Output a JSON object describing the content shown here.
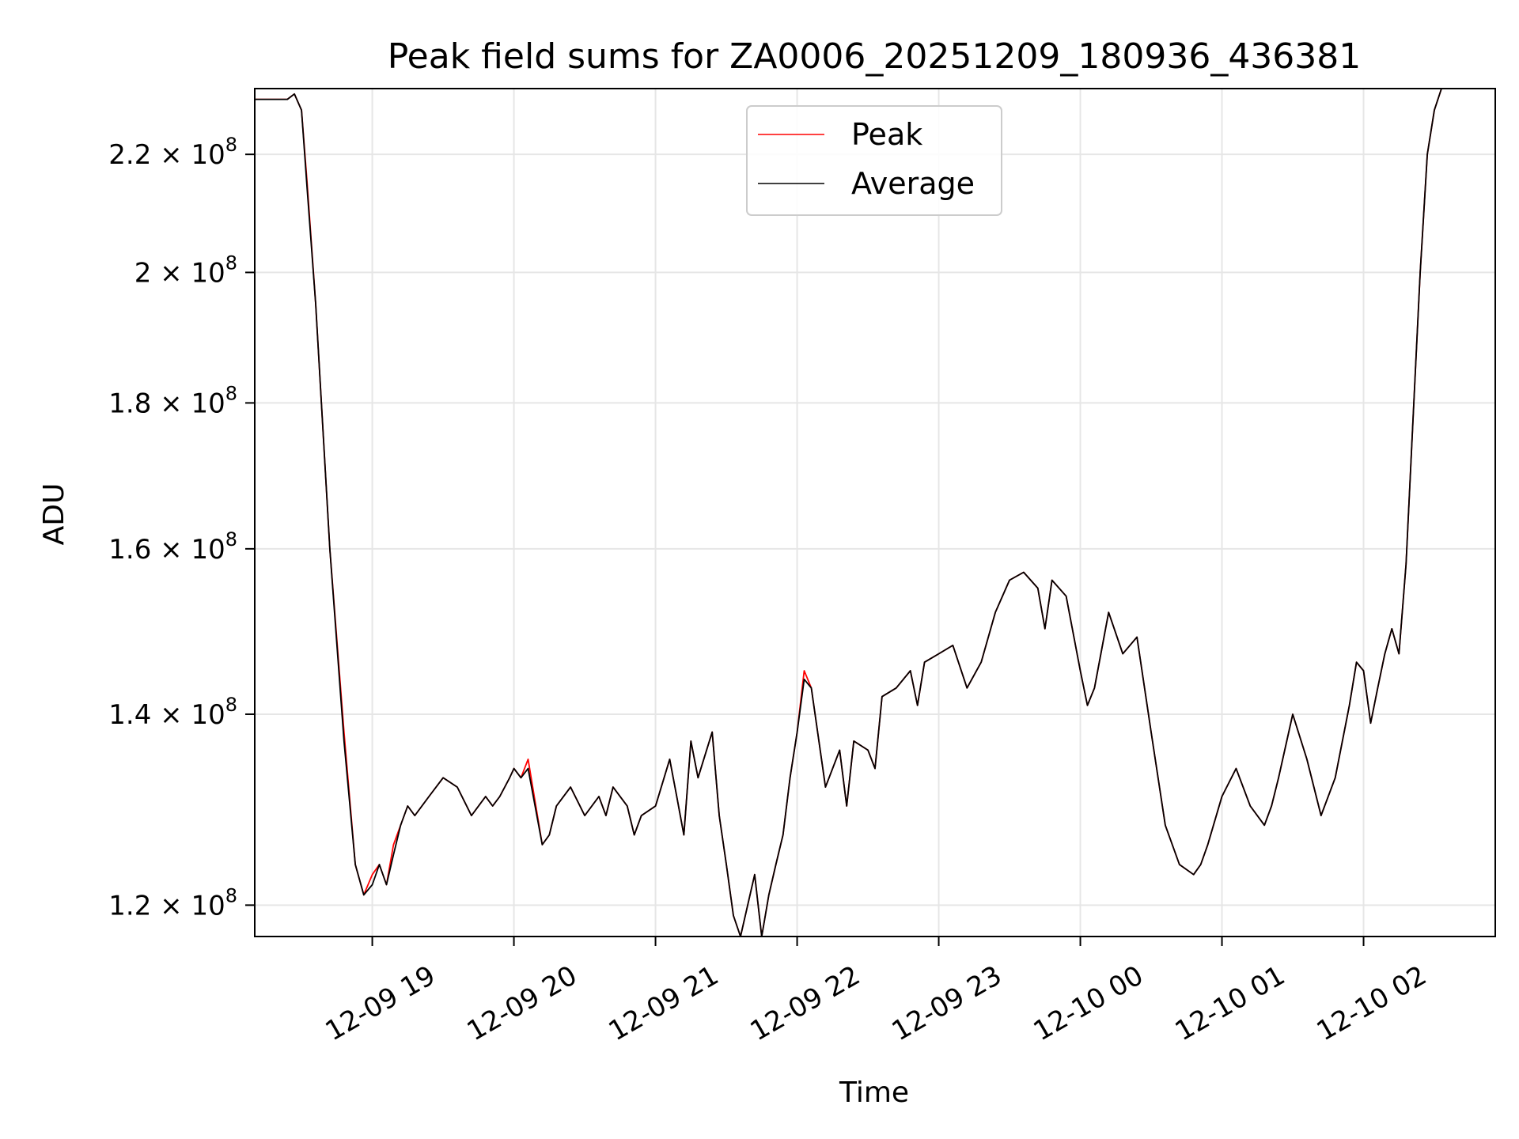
{
  "chart_data": {
    "type": "line",
    "title": "Peak field sums for ZA0006_20251209_180936_436381",
    "xlabel": "Time",
    "ylabel": "ADU",
    "yscale": "log",
    "grid": true,
    "legend_position": "top-center",
    "x_ticks": [
      "12-09 19",
      "12-09 20",
      "12-09 21",
      "12-09 22",
      "12-09 23",
      "12-10 00",
      "12-10 01",
      "12-10 02"
    ],
    "y_ticks": [
      {
        "mantissa": "2.2",
        "exponent": "8",
        "value": 220000000
      },
      {
        "mantissa": "2",
        "exponent": "8",
        "value": 200000000
      },
      {
        "mantissa": "1.8",
        "exponent": "8",
        "value": 180000000
      },
      {
        "mantissa": "1.6",
        "exponent": "8",
        "value": 160000000
      },
      {
        "mantissa": "1.4",
        "exponent": "8",
        "value": 140000000
      },
      {
        "mantissa": "1.2",
        "exponent": "8",
        "value": 120000000
      }
    ],
    "xlim_hours": [
      -0.83,
      7.93
    ],
    "ylim": [
      117000000,
      232000000
    ],
    "x_hours": [
      -0.83,
      -0.6,
      -0.55,
      -0.5,
      -0.46,
      -0.4,
      -0.3,
      -0.2,
      -0.12,
      -0.06,
      0.0,
      0.05,
      0.1,
      0.15,
      0.2,
      0.25,
      0.3,
      0.4,
      0.5,
      0.6,
      0.7,
      0.8,
      0.85,
      0.9,
      0.97,
      1.0,
      1.05,
      1.1,
      1.2,
      1.25,
      1.3,
      1.4,
      1.5,
      1.6,
      1.65,
      1.7,
      1.8,
      1.85,
      1.9,
      2.0,
      2.1,
      2.15,
      2.2,
      2.25,
      2.3,
      2.4,
      2.45,
      2.5,
      2.55,
      2.6,
      2.7,
      2.75,
      2.8,
      2.85,
      2.9,
      2.95,
      3.0,
      3.05,
      3.1,
      3.2,
      3.3,
      3.35,
      3.4,
      3.5,
      3.55,
      3.6,
      3.7,
      3.8,
      3.85,
      3.9,
      4.0,
      4.1,
      4.2,
      4.3,
      4.4,
      4.5,
      4.6,
      4.7,
      4.75,
      4.8,
      4.9,
      5.0,
      5.05,
      5.1,
      5.2,
      5.3,
      5.4,
      5.5,
      5.6,
      5.7,
      5.8,
      5.85,
      5.9,
      6.0,
      6.1,
      6.2,
      6.3,
      6.35,
      6.4,
      6.5,
      6.6,
      6.7,
      6.8,
      6.9,
      6.95,
      7.0,
      7.05,
      7.1,
      7.15,
      7.2,
      7.25,
      7.3,
      7.35,
      7.4,
      7.45,
      7.5,
      7.55,
      7.6,
      7.65,
      7.75,
      7.93
    ],
    "series": [
      {
        "name": "Peak",
        "color": "#ff0000",
        "values": [
          230.0,
          230.0,
          231.0,
          228.0,
          215.0,
          195.0,
          160.0,
          138.0,
          124.0,
          121.0,
          123.0,
          124.0,
          122.0,
          126.0,
          128.0,
          130.0,
          129.0,
          131.0,
          133.0,
          132.0,
          129.0,
          131.0,
          130.0,
          131.0,
          133.0,
          134.0,
          133.0,
          135.0,
          126.0,
          127.0,
          130.0,
          132.0,
          129.0,
          131.0,
          129.0,
          132.0,
          130.0,
          127.0,
          129.0,
          130.0,
          135.0,
          131.0,
          127.0,
          137.0,
          133.0,
          138.0,
          129.0,
          124.0,
          119.0,
          117.0,
          123.0,
          117.0,
          121.0,
          124.0,
          127.0,
          133.0,
          138.0,
          145.0,
          143.0,
          132.0,
          136.0,
          130.0,
          137.0,
          136.0,
          134.0,
          142.0,
          143.0,
          145.0,
          141.0,
          146.0,
          147.0,
          148.0,
          143.0,
          146.0,
          152.0,
          156.0,
          157.0,
          155.0,
          150.0,
          156.0,
          154.0,
          145.0,
          141.0,
          143.0,
          152.0,
          147.0,
          149.0,
          138.0,
          128.0,
          124.0,
          123.0,
          124.0,
          126.0,
          131.0,
          134.0,
          130.0,
          128.0,
          130.0,
          133.0,
          140.0,
          135.0,
          129.0,
          133.0,
          141.0,
          146.0,
          145.0,
          139.0,
          143.0,
          147.0,
          150.0,
          147.0,
          158.0,
          178.0,
          200.0,
          220.0,
          228.0,
          232.0,
          232.0,
          232.0,
          232.0,
          232.0
        ]
      },
      {
        "name": "Average",
        "color": "#000000",
        "values": [
          230.0,
          230.0,
          231.0,
          228.0,
          214.0,
          195.0,
          160.0,
          137.0,
          124.0,
          121.0,
          122.0,
          124.0,
          122.0,
          125.0,
          128.0,
          130.0,
          129.0,
          131.0,
          133.0,
          132.0,
          129.0,
          131.0,
          130.0,
          131.0,
          133.0,
          134.0,
          133.0,
          134.0,
          126.0,
          127.0,
          130.0,
          132.0,
          129.0,
          131.0,
          129.0,
          132.0,
          130.0,
          127.0,
          129.0,
          130.0,
          135.0,
          131.0,
          127.0,
          137.0,
          133.0,
          138.0,
          129.0,
          124.0,
          119.0,
          117.0,
          123.0,
          117.0,
          121.0,
          124.0,
          127.0,
          133.0,
          138.0,
          144.0,
          143.0,
          132.0,
          136.0,
          130.0,
          137.0,
          136.0,
          134.0,
          142.0,
          143.0,
          145.0,
          141.0,
          146.0,
          147.0,
          148.0,
          143.0,
          146.0,
          152.0,
          156.0,
          157.0,
          155.0,
          150.0,
          156.0,
          154.0,
          145.0,
          141.0,
          143.0,
          152.0,
          147.0,
          149.0,
          138.0,
          128.0,
          124.0,
          123.0,
          124.0,
          126.0,
          131.0,
          134.0,
          130.0,
          128.0,
          130.0,
          133.0,
          140.0,
          135.0,
          129.0,
          133.0,
          141.0,
          146.0,
          145.0,
          139.0,
          143.0,
          147.0,
          150.0,
          147.0,
          158.0,
          178.0,
          200.0,
          220.0,
          228.0,
          232.0,
          232.0,
          232.0,
          232.0,
          232.0
        ]
      }
    ],
    "value_unit_multiplier": 1000000,
    "legend_entries": [
      "Peak",
      "Average"
    ]
  }
}
